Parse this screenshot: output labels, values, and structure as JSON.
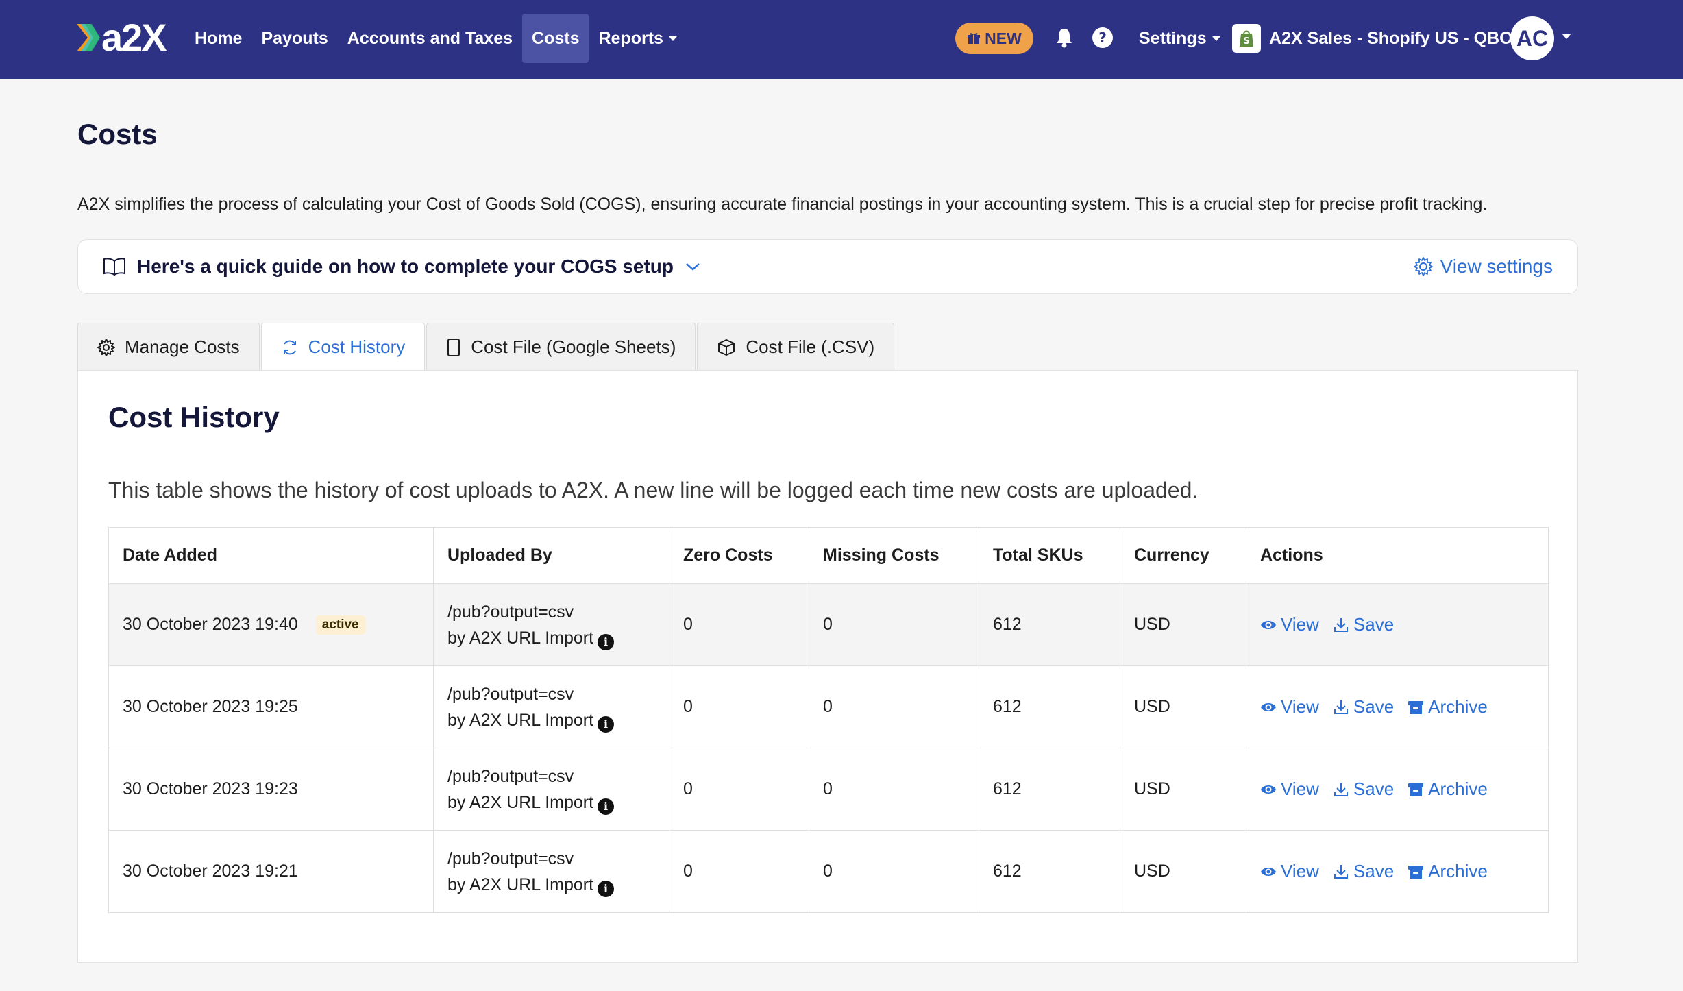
{
  "nav": {
    "logo_text": "a2X",
    "links": [
      "Home",
      "Payouts",
      "Accounts and Taxes",
      "Costs",
      "Reports"
    ],
    "active_link": "Costs",
    "new_label": "NEW",
    "settings_label": "Settings",
    "store_name": "A2X Sales - Shopify US - QBO",
    "avatar_initials": "AC"
  },
  "page": {
    "title": "Costs",
    "intro": "A2X simplifies the process of calculating your Cost of Goods Sold (COGS), ensuring accurate financial postings in your accounting system. This is a crucial step for precise profit tracking.",
    "guide_text": "Here's a quick guide on how to complete your COGS setup",
    "view_settings": "View settings"
  },
  "tabs": [
    {
      "label": "Manage Costs",
      "icon": "gear-icon"
    },
    {
      "label": "Cost History",
      "icon": "refresh-icon",
      "active": true
    },
    {
      "label": "Cost File (Google Sheets)",
      "icon": "file-icon"
    },
    {
      "label": "Cost File (.CSV)",
      "icon": "box-icon"
    }
  ],
  "panel": {
    "title": "Cost History",
    "description": "This table shows the history of cost uploads to A2X. A new line will be logged each time new costs are uploaded."
  },
  "table": {
    "headers": [
      "Date Added",
      "Uploaded By",
      "Zero Costs",
      "Missing Costs",
      "Total SKUs",
      "Currency",
      "Actions"
    ],
    "active_badge": "active",
    "action_labels": {
      "view": "View",
      "save": "Save",
      "archive": "Archive"
    },
    "rows": [
      {
        "date": "30 October 2023 19:40",
        "active": true,
        "source": "/pub?output=csv",
        "uploader": "by A2X URL Import",
        "zero": "0",
        "missing": "0",
        "total": "612",
        "currency": "USD",
        "archive": false
      },
      {
        "date": "30 October 2023 19:25",
        "active": false,
        "source": "/pub?output=csv",
        "uploader": "by A2X URL Import",
        "zero": "0",
        "missing": "0",
        "total": "612",
        "currency": "USD",
        "archive": true
      },
      {
        "date": "30 October 2023 19:23",
        "active": false,
        "source": "/pub?output=csv",
        "uploader": "by A2X URL Import",
        "zero": "0",
        "missing": "0",
        "total": "612",
        "currency": "USD",
        "archive": true
      },
      {
        "date": "30 October 2023 19:21",
        "active": false,
        "source": "/pub?output=csv",
        "uploader": "by A2X URL Import",
        "zero": "0",
        "missing": "0",
        "total": "612",
        "currency": "USD",
        "archive": true
      }
    ]
  },
  "colors": {
    "navbar": "#2e3285",
    "link_blue": "#2b6fd6",
    "new_pill": "#f0a24a"
  }
}
